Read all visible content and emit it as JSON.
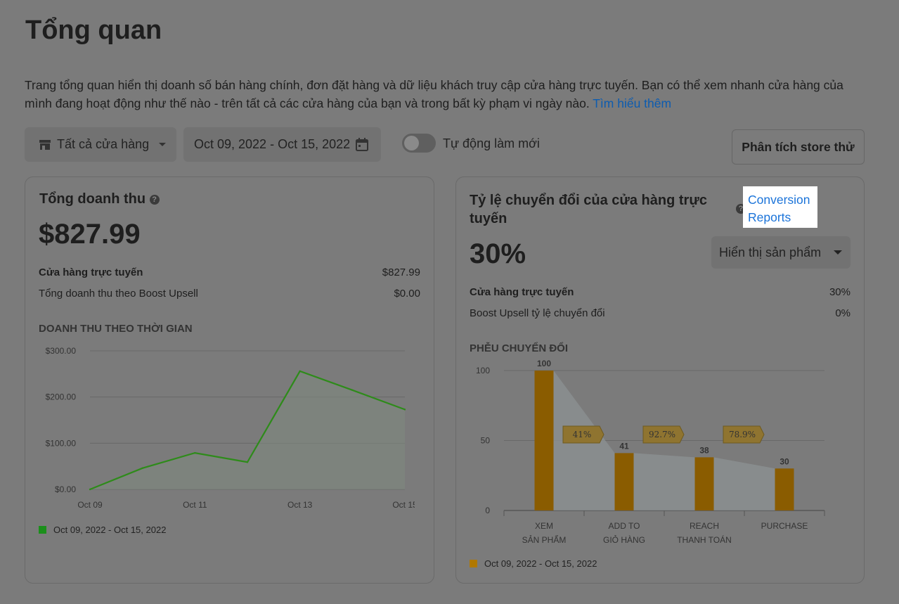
{
  "page": {
    "title": "Tổng quan",
    "intro_text": "Trang tổng quan hiển thị doanh số bán hàng chính, đơn đặt hàng và dữ liệu khách truy cập cửa hàng trực tuyến. Bạn có thể xem nhanh cửa hàng của mình đang hoạt động như thế nào - trên tất cả các cửa hàng của bạn và trong bất kỳ phạm vi ngày nào. ",
    "learn_more": "Tìm hiểu thêm"
  },
  "toolbar": {
    "store_select": "Tất cả cửa hàng",
    "date_range": "Oct 09, 2022 - Oct 15, 2022",
    "auto_refresh_label": "Tự động làm mới",
    "auto_refresh_on": false,
    "analyze_button": "Phân tích store thử"
  },
  "revenue_card": {
    "title": "Tổng doanh thu",
    "value": "$827.99",
    "rows": [
      {
        "label": "Cửa hàng trực tuyến",
        "value": "$827.99"
      },
      {
        "label": "Tổng doanh thu theo Boost Upsell",
        "value": "$0.00"
      }
    ],
    "chart_title": "DOANH THU THEO THỜI GIAN",
    "legend": "Oct 09, 2022 - Oct 15, 2022"
  },
  "conversion_card": {
    "title_line1": "Tỷ lệ chuyển đổi của cửa hàng trực",
    "title_line2": "tuyến",
    "link_line1": "Conversion",
    "link_line2": "Reports",
    "value": "30%",
    "display_select": "Hiển thị sản phẩm",
    "rows": [
      {
        "label": "Cửa hàng trực tuyến",
        "value": "30%"
      },
      {
        "label": "Boost Upsell tỷ lệ chuyển đổi",
        "value": "0%"
      }
    ],
    "chart_title": "PHỄU CHUYỂN ĐỔI",
    "legend": "Oct 09, 2022 - Oct 15, 2022"
  },
  "colors": {
    "line_green": "#2e8b1a",
    "bar_orange": "#8a5c00",
    "link_blue": "#1a73d9"
  },
  "chart_data": [
    {
      "type": "area",
      "title": "DOANH THU THEO THỜI GIAN",
      "x": [
        "Oct 09",
        "Oct 10",
        "Oct 11",
        "Oct 12",
        "Oct 13",
        "Oct 14",
        "Oct 15"
      ],
      "x_tick_labels": [
        "Oct 09",
        "Oct 11",
        "Oct 13",
        "Oct 15"
      ],
      "y_tick_labels": [
        "$0.00",
        "$100.00",
        "$200.00",
        "$300.00"
      ],
      "series": [
        {
          "name": "Oct 09, 2022 - Oct 15, 2022",
          "values": [
            0,
            46,
            79,
            59,
            256,
            215,
            173
          ]
        }
      ],
      "ylim": [
        0,
        300
      ],
      "grid": true,
      "legend_position": "bottom-left"
    },
    {
      "type": "bar",
      "title": "PHỄU CHUYỂN ĐỔI",
      "categories": [
        [
          "XEM",
          "SẢN PHẨM"
        ],
        [
          "ADD TO",
          "GIỎ HÀNG"
        ],
        [
          "REACH",
          "THANH TOÁN"
        ],
        [
          "PURCHASE"
        ]
      ],
      "series": [
        {
          "name": "Oct 09, 2022 - Oct 15, 2022",
          "values": [
            100,
            41,
            38,
            30
          ]
        }
      ],
      "step_rates": [
        "41%",
        "92.7%",
        "78.9%"
      ],
      "y_tick_labels": [
        "0",
        "50",
        "100"
      ],
      "ylim": [
        0,
        100
      ],
      "grid": true,
      "legend_position": "bottom-left"
    }
  ]
}
